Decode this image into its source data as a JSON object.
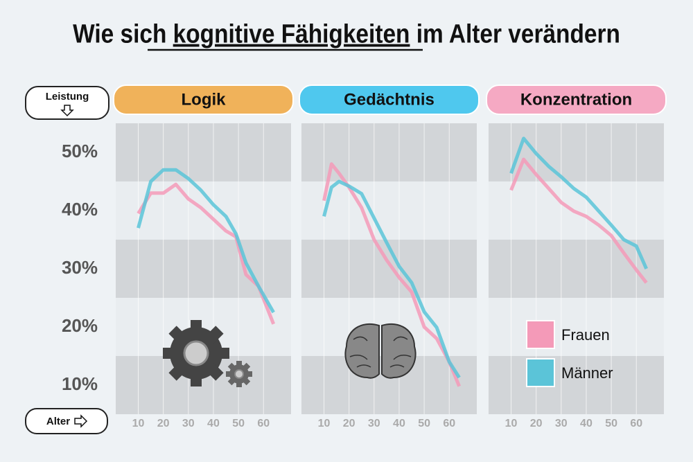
{
  "headline": [
    "Wie sich ",
    "kognitive Fähigkeiten",
    " im Alter verändern"
  ],
  "chart_data": [
    {
      "type": "line",
      "title": "Logik",
      "title_color": "#f0b25a",
      "y_label": "Leistung",
      "x_label": "Alter",
      "x": [
        10,
        15,
        20,
        25,
        30,
        35,
        40,
        45,
        49,
        53,
        58,
        64
      ],
      "series": [
        {
          "name": "Frauen",
          "color": "#f49ab8",
          "values": [
            39.5,
            43,
            43,
            44.5,
            42,
            40.5,
            38.5,
            36.5,
            35.5,
            29,
            27,
            20.5
          ]
        },
        {
          "name": "Männer",
          "color": "#5bc4d8",
          "values": [
            37,
            45,
            47,
            47,
            45.5,
            43.5,
            41,
            39,
            36,
            31,
            27,
            22.5
          ]
        }
      ],
      "xlim": [
        1,
        71
      ],
      "xticks": [
        10,
        20,
        30,
        40,
        50,
        60
      ],
      "ylim": [
        5,
        55
      ],
      "yticks": [
        {
          "value": 50,
          "label": "50%"
        },
        {
          "value": 40,
          "label": "40%"
        },
        {
          "value": 30,
          "label": "30%"
        },
        {
          "value": 20,
          "label": "20%"
        },
        {
          "value": 10,
          "label": "10%"
        }
      ]
    },
    {
      "type": "line",
      "title": "Gedächtnis",
      "title_color": "#4fc8ee",
      "x": [
        10,
        13,
        16,
        20,
        25,
        30,
        35,
        40,
        45,
        50,
        55,
        60,
        64
      ],
      "series": [
        {
          "name": "Frauen",
          "color": "#f49ab8",
          "values": [
            41.7,
            48,
            46.4,
            44,
            40.5,
            35,
            31.5,
            28.5,
            26,
            20,
            18,
            14,
            9.8
          ]
        },
        {
          "name": "Männer",
          "color": "#5bc4d8",
          "values": [
            39,
            44,
            45,
            44.2,
            42.9,
            38.7,
            34.5,
            30.4,
            27.6,
            22.6,
            19.9,
            14,
            11.3
          ]
        }
      ],
      "xlim": [
        1,
        71
      ],
      "xticks": [
        10,
        20,
        30,
        40,
        50,
        60
      ],
      "ylim": [
        5,
        55
      ]
    },
    {
      "type": "line",
      "title": "Konzentration",
      "title_color": "#f5a9c3",
      "legend": "lower right",
      "x": [
        10,
        15,
        20,
        25,
        30,
        35,
        40,
        45,
        50,
        55,
        60,
        64
      ],
      "series": [
        {
          "name": "Frauen",
          "color": "#f49ab8",
          "values": [
            43.5,
            48.8,
            46.2,
            43.8,
            41.4,
            39.9,
            39,
            37.5,
            35.7,
            32.7,
            29.8,
            27.6
          ]
        },
        {
          "name": "Männer",
          "color": "#5bc4d8",
          "values": [
            46.4,
            52.4,
            49.8,
            47.6,
            45.8,
            43.8,
            42.3,
            39.9,
            37.5,
            35,
            33.9,
            30
          ]
        }
      ],
      "xlim": [
        1,
        71
      ],
      "xticks": [
        10,
        20,
        30,
        40,
        50,
        60
      ],
      "ylim": [
        5,
        55
      ]
    }
  ]
}
